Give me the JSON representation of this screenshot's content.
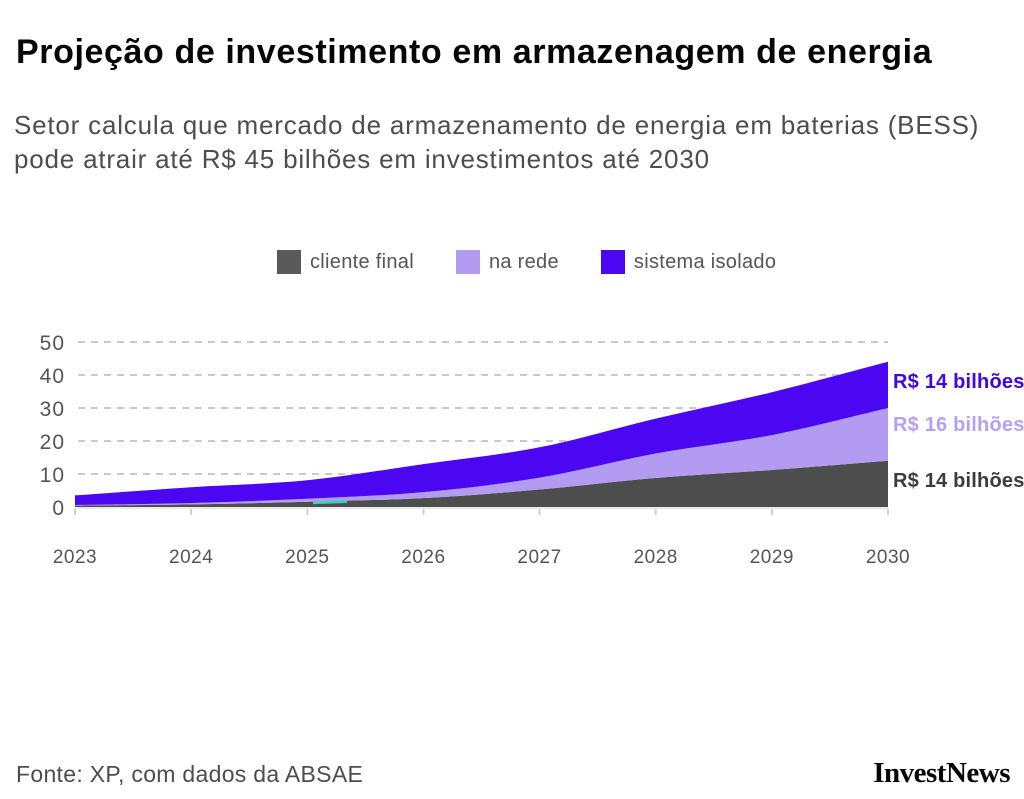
{
  "header": {
    "title": "Projeção de investimento em armazenagem de energia",
    "subtitle": "Setor calcula que mercado de armazenamento de energia em baterias (BESS) pode atrair até R$ 45 bilhões em investimentos até 2030"
  },
  "legend": [
    {
      "label": "cliente final",
      "color": "#595959"
    },
    {
      "label": "na rede",
      "color": "#B29BF0"
    },
    {
      "label": "sistema isolado",
      "color": "#4B06F2"
    }
  ],
  "colors": {
    "accent_blue": "#4B06F2",
    "accent_purple": "#B29BF0",
    "accent_gray": "#4D4D4D",
    "grid": "#C9C9C9",
    "axis_text": "#555555",
    "baseline": "#E2E2E2",
    "teal_sliver": "#2BD2C6"
  },
  "chart_data": {
    "type": "area",
    "stacked": true,
    "title": "Projeção de investimento em armazenagem de energia",
    "x": [
      2023,
      2024,
      2025,
      2026,
      2027,
      2028,
      2029,
      2030
    ],
    "series": [
      {
        "name": "cliente final",
        "color": "#4D4D4D",
        "label_color": "#3C3C3C",
        "values": [
          0.4,
          0.8,
          1.6,
          2.7,
          5.3,
          8.8,
          11.2,
          14
        ],
        "end_label": "R$ 14 bilhões"
      },
      {
        "name": "na rede",
        "color": "#B29BF0",
        "label_color": "#B6A0F5",
        "values": [
          0.2,
          0.4,
          0.9,
          1.8,
          3.6,
          7.4,
          10.6,
          16
        ],
        "end_label": "R$ 16 bilhões"
      },
      {
        "name": "sistema isolado",
        "color": "#4B06F2",
        "label_color": "#4205E5",
        "values": [
          2.9,
          4.8,
          5.6,
          8.5,
          9.2,
          10.6,
          13.0,
          14
        ],
        "end_label": "R$ 14 bilhões"
      }
    ],
    "total_2030": 44,
    "ylim": [
      0,
      50
    ],
    "yticks": [
      0,
      10,
      20,
      30,
      40,
      50
    ],
    "xlabel": "",
    "ylabel": "",
    "grid": "dashed-horizontal",
    "legend_position": "top"
  },
  "footer": {
    "source": "Fonte: XP, com dados da ABSAE",
    "brand": "InvestNews"
  }
}
